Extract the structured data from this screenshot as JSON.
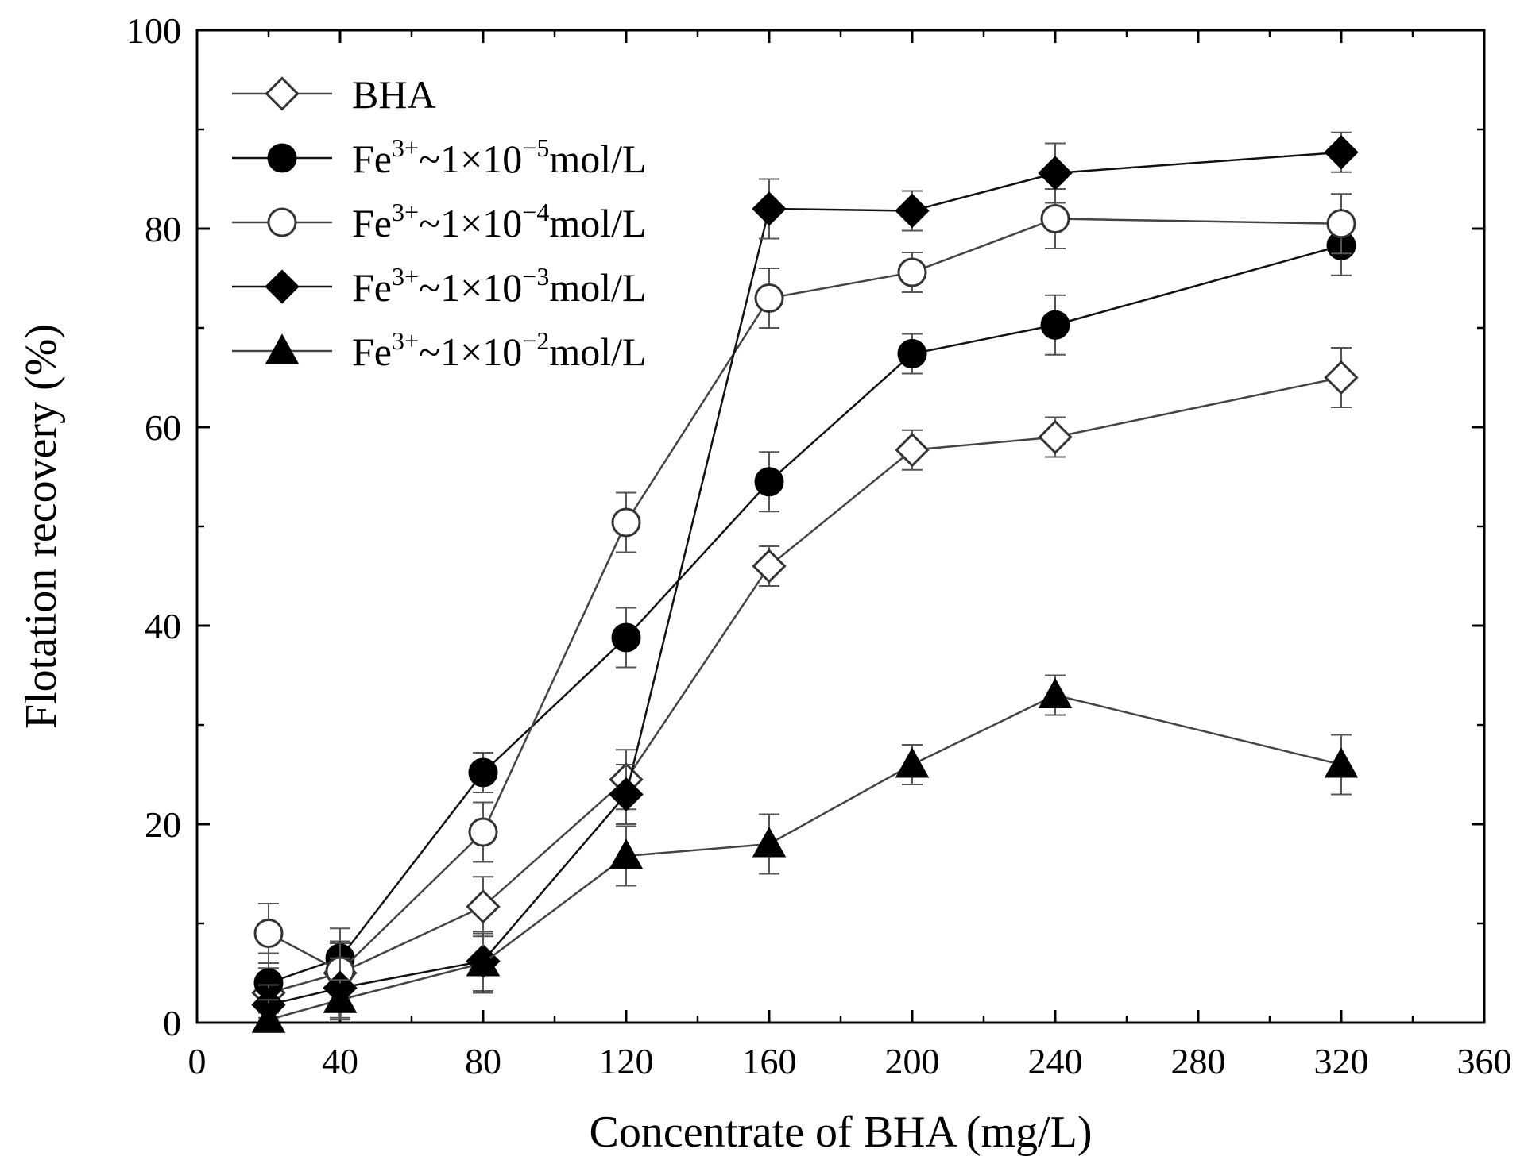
{
  "chart_data": {
    "type": "line",
    "title": "",
    "xlabel": "Concentrate of BHA (mg/L)",
    "ylabel": "Flotation recovery (%)",
    "xlim": [
      0,
      360
    ],
    "ylim": [
      0,
      100
    ],
    "xticks": [
      0,
      40,
      80,
      120,
      160,
      200,
      240,
      280,
      320,
      360
    ],
    "yticks": [
      0,
      20,
      40,
      60,
      80,
      100
    ],
    "x": [
      20,
      40,
      80,
      120,
      160,
      200,
      240,
      320
    ],
    "legend_position": "top-left",
    "series": [
      {
        "name": "BHA",
        "legend": {
          "base": "BHA",
          "sup": "",
          "mid": "",
          "exp": "",
          "unit": ""
        },
        "marker": "diamond-open",
        "color": "#444444",
        "values": [
          3.0,
          5.0,
          11.7,
          24.5,
          46.0,
          57.7,
          59.0,
          65.0
        ],
        "errors": [
          2.5,
          3.0,
          3.0,
          3.0,
          2.0,
          2.0,
          2.0,
          3.0
        ]
      },
      {
        "name": "Fe3+~1×10-5mol/L",
        "legend": {
          "base": "Fe",
          "sup": "3+",
          "mid": "~1×10",
          "exp": "−5",
          "unit": "mol/L"
        },
        "marker": "circle-filled",
        "color": "#111111",
        "values": [
          4.0,
          6.5,
          25.2,
          38.8,
          54.5,
          67.4,
          70.3,
          78.3
        ],
        "errors": [
          3.0,
          3.0,
          2.0,
          3.0,
          3.0,
          2.0,
          3.0,
          3.0
        ]
      },
      {
        "name": "Fe3+~1×10-4mol/L",
        "legend": {
          "base": "Fe",
          "sup": "3+",
          "mid": "~1×10",
          "exp": "−4",
          "unit": "mol/L"
        },
        "marker": "circle-open",
        "color": "#444444",
        "values": [
          9.0,
          5.2,
          19.2,
          50.4,
          73.0,
          75.6,
          81.0,
          80.5
        ],
        "errors": [
          3.0,
          3.0,
          3.0,
          3.0,
          3.0,
          2.0,
          3.0,
          3.0
        ]
      },
      {
        "name": "Fe3+~1×10-3mol/L",
        "legend": {
          "base": "Fe",
          "sup": "3+",
          "mid": "~1×10",
          "exp": "−3",
          "unit": "mol/L"
        },
        "marker": "diamond-filled",
        "color": "#111111",
        "values": [
          1.8,
          3.5,
          6.2,
          23.0,
          82.0,
          81.8,
          85.6,
          87.7
        ],
        "errors": [
          2.0,
          3.0,
          3.0,
          3.0,
          3.0,
          2.0,
          3.0,
          2.0
        ]
      },
      {
        "name": "Fe3+~1×10-2mol/L",
        "legend": {
          "base": "Fe",
          "sup": "3+",
          "mid": "~1×10",
          "exp": "−2",
          "unit": "mol/L"
        },
        "marker": "triangle-filled",
        "color": "#444444",
        "values": [
          0.3,
          2.3,
          6.0,
          16.8,
          18.0,
          26.0,
          33.0,
          26.0
        ],
        "errors": [
          2.0,
          2.0,
          3.0,
          3.0,
          3.0,
          2.0,
          2.0,
          3.0
        ]
      }
    ]
  }
}
